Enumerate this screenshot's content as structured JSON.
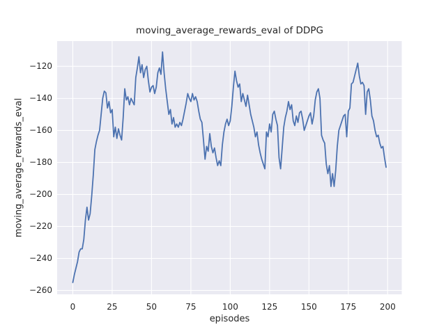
{
  "figure": {
    "title": "moving_average_rewards_eval of DDPG",
    "xlabel": "episodes",
    "ylabel": "moving_average_rewards_eval"
  },
  "chart_data": {
    "type": "line",
    "title": "moving_average_rewards_eval of DDPG",
    "xlabel": "episodes",
    "ylabel": "moving_average_rewards_eval",
    "grid": true,
    "legend": "none",
    "style": {
      "line_color": "#4C72B0",
      "plot_background": "#EAEAF2",
      "grid_color": "#FFFFFF",
      "text_color": "#262626",
      "figure_background": "#FFFFFF"
    },
    "xlim": [
      -9.95,
      208.95
    ],
    "ylim": [
      -262.4,
      -104.2
    ],
    "x_ticks": [
      0,
      25,
      50,
      75,
      100,
      125,
      150,
      175,
      200
    ],
    "x_tick_labels": [
      "0",
      "25",
      "50",
      "75",
      "100",
      "125",
      "150",
      "175",
      "200"
    ],
    "y_ticks": [
      -260,
      -240,
      -220,
      -200,
      -180,
      -160,
      -140,
      -120
    ],
    "y_tick_labels": [
      "−260",
      "−240",
      "−220",
      "−200",
      "−180",
      "−160",
      "−140",
      "−120"
    ],
    "series": [
      {
        "name": "moving_average_rewards_eval",
        "color": "#4C72B0",
        "x_start": 0,
        "x_step": 1,
        "values": [
          -255,
          -250,
          -246,
          -242,
          -236,
          -234,
          -234,
          -228,
          -216,
          -208,
          -216,
          -212,
          -201,
          -188,
          -172,
          -167,
          -163,
          -160,
          -150,
          -140,
          -135.5,
          -136.5,
          -146,
          -142,
          -149,
          -147,
          -164,
          -158,
          -165,
          -159,
          -163,
          -166,
          -152,
          -134,
          -141,
          -139,
          -144,
          -140,
          -142,
          -144,
          -127,
          -121,
          -114,
          -124,
          -119,
          -127,
          -122,
          -120,
          -129,
          -136,
          -133,
          -132,
          -137,
          -133,
          -124,
          -121,
          -125,
          -111,
          -124,
          -134,
          -142,
          -150,
          -147,
          -156,
          -152,
          -158,
          -156,
          -158,
          -155,
          -157,
          -153,
          -148,
          -143,
          -137,
          -140,
          -142,
          -137,
          -141,
          -139,
          -142,
          -148,
          -153,
          -155,
          -166,
          -178,
          -170,
          -173,
          -162,
          -170,
          -174,
          -171,
          -177,
          -182,
          -179,
          -182,
          -169,
          -161,
          -156,
          -153,
          -157,
          -154,
          -145,
          -133,
          -123,
          -129,
          -133,
          -131,
          -142,
          -137,
          -141,
          -145,
          -138,
          -144,
          -150,
          -154,
          -158,
          -164,
          -161,
          -169,
          -174,
          -178,
          -181,
          -184,
          -161,
          -164,
          -156,
          -161,
          -150,
          -148,
          -153,
          -157,
          -177,
          -184,
          -171,
          -158,
          -152,
          -148,
          -142,
          -147,
          -144,
          -154,
          -157,
          -151,
          -155,
          -149,
          -148,
          -153,
          -160,
          -157,
          -154,
          -151,
          -149,
          -156,
          -151,
          -141,
          -136,
          -134,
          -140,
          -163,
          -166,
          -168,
          -181,
          -187,
          -182,
          -195,
          -187,
          -195,
          -185,
          -170,
          -160,
          -157,
          -154,
          -151,
          -150,
          -164,
          -148,
          -146,
          -131,
          -130,
          -126,
          -122,
          -118,
          -126,
          -131,
          -130,
          -132,
          -150,
          -136,
          -134,
          -141,
          -151,
          -154,
          -160,
          -164,
          -163,
          -168,
          -171,
          -170,
          -177,
          -183
        ]
      }
    ]
  }
}
